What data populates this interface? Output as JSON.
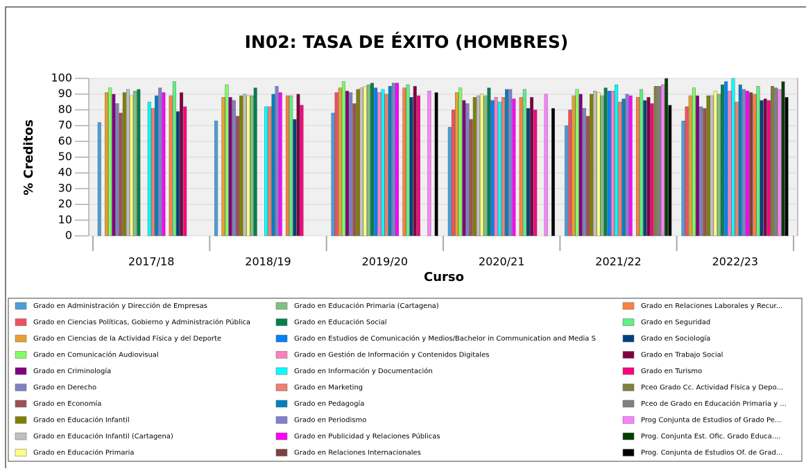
{
  "chart_data": {
    "type": "bar",
    "title": "IN02: TASA DE ÉXITO (HOMBRES)",
    "xlabel": "Curso",
    "ylabel": "% Creditos",
    "categories": [
      "2017/18",
      "2018/19",
      "2019/20",
      "2020/21",
      "2021/22",
      "2022/23"
    ],
    "ylim": [
      0,
      100
    ],
    "yticks": [
      0,
      10,
      20,
      30,
      40,
      50,
      60,
      70,
      80,
      90,
      100
    ],
    "grid": true,
    "legend": "bottom",
    "series": [
      {
        "name": "Grado en Administración y Dirección de Empresas",
        "color": "#4a9fd8",
        "values": [
          72,
          73,
          78,
          69,
          70,
          73
        ]
      },
      {
        "name": "Grado en Ciencias Políticas, Gobierno y Administración Pública",
        "color": "#f05060",
        "values": [
          null,
          null,
          91,
          80,
          80,
          82
        ]
      },
      {
        "name": "Grado en Ciencias de la Actividad Física y del Deporte",
        "color": "#e8a030",
        "values": [
          91,
          88,
          94,
          91,
          89,
          89
        ]
      },
      {
        "name": "Grado en Comunicación Audiovisual",
        "color": "#80ff60",
        "values": [
          94,
          96,
          98,
          94,
          93,
          94
        ]
      },
      {
        "name": "Grado en Criminología",
        "color": "#800080",
        "values": [
          90,
          88,
          92,
          86,
          90,
          89
        ]
      },
      {
        "name": "Grado en Derecho",
        "color": "#8080c0",
        "values": [
          84,
          86,
          91,
          84,
          81,
          82
        ]
      },
      {
        "name": "Grado en Economía",
        "color": "#a05050",
        "values": [
          78,
          76,
          84,
          74,
          76,
          81
        ]
      },
      {
        "name": "Grado en Educación Infantil",
        "color": "#808000",
        "values": [
          91,
          89,
          93,
          88,
          90,
          89
        ]
      },
      {
        "name": "Grado en Educación Infantil (Cartagena)",
        "color": "#c0c0c0",
        "values": [
          93,
          90,
          94,
          89,
          92,
          89
        ]
      },
      {
        "name": "Grado en Educación Primaria",
        "color": "#ffff80",
        "values": [
          89,
          89,
          95,
          90,
          91,
          92
        ]
      },
      {
        "name": "Grado en Educación Primaria (Cartagena)",
        "color": "#80c080",
        "values": [
          92,
          89,
          96,
          89,
          89,
          90
        ]
      },
      {
        "name": "Grado en Educación Social",
        "color": "#008050",
        "values": [
          93,
          94,
          97,
          94,
          94,
          96
        ]
      },
      {
        "name": "Grado en Estudios de Comunicación y Medios/Bachelor in Communication and Media S",
        "color": "#0080ff",
        "values": [
          null,
          null,
          94,
          86,
          92,
          98
        ]
      },
      {
        "name": "Grado en Gestión de Información y Contenidos Digitales",
        "color": "#ff80c0",
        "values": [
          null,
          null,
          91,
          88,
          92,
          92
        ]
      },
      {
        "name": "Grado en Información y Documentación",
        "color": "#00ffff",
        "values": [
          85,
          82,
          93,
          85,
          96,
          100
        ]
      },
      {
        "name": "Grado en Marketing",
        "color": "#f08070",
        "values": [
          81,
          82,
          90,
          88,
          85,
          85
        ]
      },
      {
        "name": "Grado en Pedagogía",
        "color": "#0080c0",
        "values": [
          89,
          90,
          95,
          93,
          87,
          96
        ]
      },
      {
        "name": "Grado en Periodismo",
        "color": "#8080d0",
        "values": [
          94,
          95,
          97,
          93,
          90,
          93
        ]
      },
      {
        "name": "Grado en Publicidad y Relaciones Públicas",
        "color": "#ff00ff",
        "values": [
          91,
          91,
          97,
          87,
          89,
          92
        ]
      },
      {
        "name": "Grado en Relaciones Internacionales",
        "color": "#804040",
        "values": [
          null,
          null,
          null,
          null,
          null,
          91
        ]
      },
      {
        "name": "Grado en Relaciones Laborales y Recur...",
        "color": "#ff8040",
        "values": [
          89,
          89,
          94,
          88,
          88,
          90
        ]
      },
      {
        "name": "Grado en Seguridad",
        "color": "#60f080",
        "values": [
          98,
          89,
          96,
          93,
          93,
          95
        ]
      },
      {
        "name": "Grado en Sociología",
        "color": "#004080",
        "values": [
          79,
          74,
          88,
          81,
          86,
          86
        ]
      },
      {
        "name": "Grado en Trabajo Social",
        "color": "#800040",
        "values": [
          91,
          90,
          95,
          88,
          88,
          87
        ]
      },
      {
        "name": "Grado en Turismo",
        "color": "#ff0080",
        "values": [
          82,
          83,
          89,
          80,
          84,
          86
        ]
      },
      {
        "name": "Pceo Grado Cc. Actividad Física y Depo...",
        "color": "#808040",
        "values": [
          null,
          null,
          null,
          null,
          95,
          95
        ]
      },
      {
        "name": "Pceo de Grado en Educación Primaria y ...",
        "color": "#808080",
        "values": [
          null,
          null,
          null,
          null,
          95,
          94
        ]
      },
      {
        "name": "Prog Conjunta de Estudios of Grado Pe...",
        "color": "#ff80ff",
        "values": [
          null,
          null,
          92,
          90,
          96,
          93
        ]
      },
      {
        "name": "Prog. Conjunta  Est. Ofic. Grado Educa....",
        "color": "#004000",
        "values": [
          null,
          null,
          null,
          null,
          100,
          98
        ]
      },
      {
        "name": "Prog. Conjunta de Estudios Of. de Grad...",
        "color": "#000000",
        "values": [
          null,
          null,
          91,
          81,
          83,
          88
        ]
      }
    ]
  }
}
